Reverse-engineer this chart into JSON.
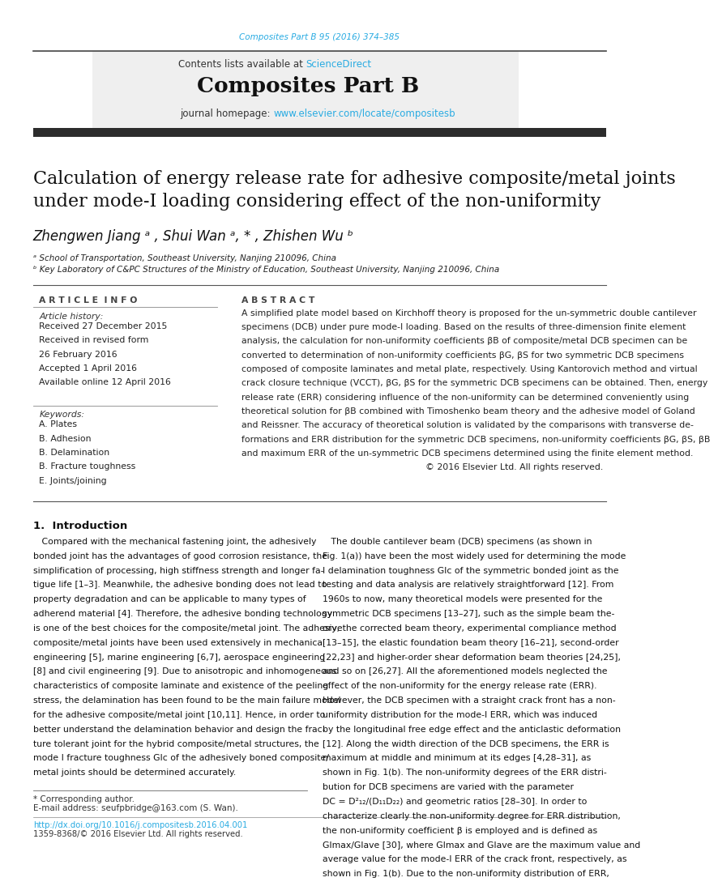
{
  "page_width": 9.92,
  "page_height": 13.23,
  "background_color": "#ffffff",
  "top_citation": "Composites Part B 95 (2016) 374–385",
  "top_citation_color": "#29ABE2",
  "journal_name": "Composites Part B",
  "contents_text": "Contents lists available at ",
  "sciencedirect_text": "ScienceDirect",
  "sciencedirect_color": "#29ABE2",
  "journal_homepage_text": "journal homepage: ",
  "journal_url": "www.elsevier.com/locate/compositesb",
  "journal_url_color": "#29ABE2",
  "header_bg_color": "#f0f0f0",
  "dark_bar_color": "#2c2c2c",
  "article_title": "Calculation of energy release rate for adhesive composite/metal joints\nunder mode-I loading considering effect of the non-uniformity",
  "authors": "Zhengwen Jiang ᵃ , Shui Wan ᵃ, * , Zhishen Wu ᵇ",
  "affil_a": "ᵃ School of Transportation, Southeast University, Nanjing 210096, China",
  "affil_b": "ᵇ Key Laboratory of C&PC Structures of the Ministry of Education, Southeast University, Nanjing 210096, China",
  "article_info_header": "A R T I C L E  I N F O",
  "abstract_header": "A B S T R A C T",
  "article_history_label": "Article history:",
  "history_lines": [
    "Received 27 December 2015",
    "Received in revised form",
    "26 February 2016",
    "Accepted 1 April 2016",
    "Available online 12 April 2016"
  ],
  "keywords_label": "Keywords:",
  "keywords": [
    "A. Plates",
    "B. Adhesion",
    "B. Delamination",
    "B. Fracture toughness",
    "E. Joints/joining"
  ],
  "abstract_lines": [
    "A simplified plate model based on Kirchhoff theory is proposed for the un-symmetric double cantilever",
    "specimens (DCB) under pure mode-I loading. Based on the results of three-dimension finite element",
    "analysis, the calculation for non-uniformity coefficients βB of composite/metal DCB specimen can be",
    "converted to determination of non-uniformity coefficients βG, βS for two symmetric DCB specimens",
    "composed of composite laminates and metal plate, respectively. Using Kantorovich method and virtual",
    "crack closure technique (VCCT), βG, βS for the symmetric DCB specimens can be obtained. Then, energy",
    "release rate (ERR) considering influence of the non-uniformity can be determined conveniently using",
    "theoretical solution for βB combined with Timoshenko beam theory and the adhesive model of Goland",
    "and Reissner. The accuracy of theoretical solution is validated by the comparisons with transverse de-",
    "formations and ERR distribution for the symmetric DCB specimens, non-uniformity coefficients βG, βS, βB",
    "and maximum ERR of the un-symmetric DCB specimens determined using the finite element method.",
    "© 2016 Elsevier Ltd. All rights reserved."
  ],
  "intro_header": "1.  Introduction",
  "intro_left_lines": [
    "   Compared with the mechanical fastening joint, the adhesively",
    "bonded joint has the advantages of good corrosion resistance, the",
    "simplification of processing, high stiffness strength and longer fa-",
    "tigue life [1–3]. Meanwhile, the adhesive bonding does not lead to",
    "property degradation and can be applicable to many types of",
    "adherend material [4]. Therefore, the adhesive bonding technology",
    "is one of the best choices for the composite/metal joint. The adhesive",
    "composite/metal joints have been used extensively in mechanical",
    "engineering [5], marine engineering [6,7], aerospace engineering",
    "[8] and civil engineering [9]. Due to anisotropic and inhomogeneous",
    "characteristics of composite laminate and existence of the peeling",
    "stress, the delamination has been found to be the main failure model",
    "for the adhesive composite/metal joint [10,11]. Hence, in order to",
    "better understand the delamination behavior and design the frac-",
    "ture tolerant joint for the hybrid composite/metal structures, the",
    "mode I fracture toughness GIc of the adhesively boned composite/",
    "metal joints should be determined accurately."
  ],
  "intro_right_lines": [
    "   The double cantilever beam (DCB) specimens (as shown in",
    "Fig. 1(a)) have been the most widely used for determining the mode",
    "I delamination toughness GIc of the symmetric bonded joint as the",
    "testing and data analysis are relatively straightforward [12]. From",
    "1960s to now, many theoretical models were presented for the",
    "symmetric DCB specimens [13–27], such as the simple beam the-",
    "ory, the corrected beam theory, experimental compliance method",
    "[13–15], the elastic foundation beam theory [16–21], second-order",
    "[22,23] and higher-order shear deformation beam theories [24,25],",
    "and so on [26,27]. All the aforementioned models neglected the",
    "effect of the non-uniformity for the energy release rate (ERR).",
    "However, the DCB specimen with a straight crack front has a non-",
    "uniformity distribution for the mode-I ERR, which was induced",
    "by the longitudinal free edge effect and the anticlastic deformation",
    "[12]. Along the width direction of the DCB specimens, the ERR is",
    "maximum at middle and minimum at its edges [4,28–31], as",
    "shown in Fig. 1(b). The non-uniformity degrees of the ERR distri-",
    "bution for DCB specimens are varied with the parameter",
    "DC = D²₁₂/(D₁₁D₂₂) and geometric ratios [28–30]. In order to",
    "characterize clearly the non-uniformity degree for ERR distribution,",
    "the non-uniformity coefficient β is employed and is defined as",
    "GImax/GIave [30], where GImax and GIave are the maximum value and",
    "average value for the mode-I ERR of the crack front, respectively, as",
    "shown in Fig. 1(b). Due to the non-uniformity distribution of ERR,"
  ],
  "footnote_star": "* Corresponding author.",
  "footnote_email": "E-mail address: seufpbridge@163.com (S. Wan).",
  "footnote_doi": "http://dx.doi.org/10.1016/j.compositesb.2016.04.001",
  "footnote_issn": "1359-8368/© 2016 Elsevier Ltd. All rights reserved.",
  "link_color": "#29ABE2",
  "text_color": "#000000"
}
